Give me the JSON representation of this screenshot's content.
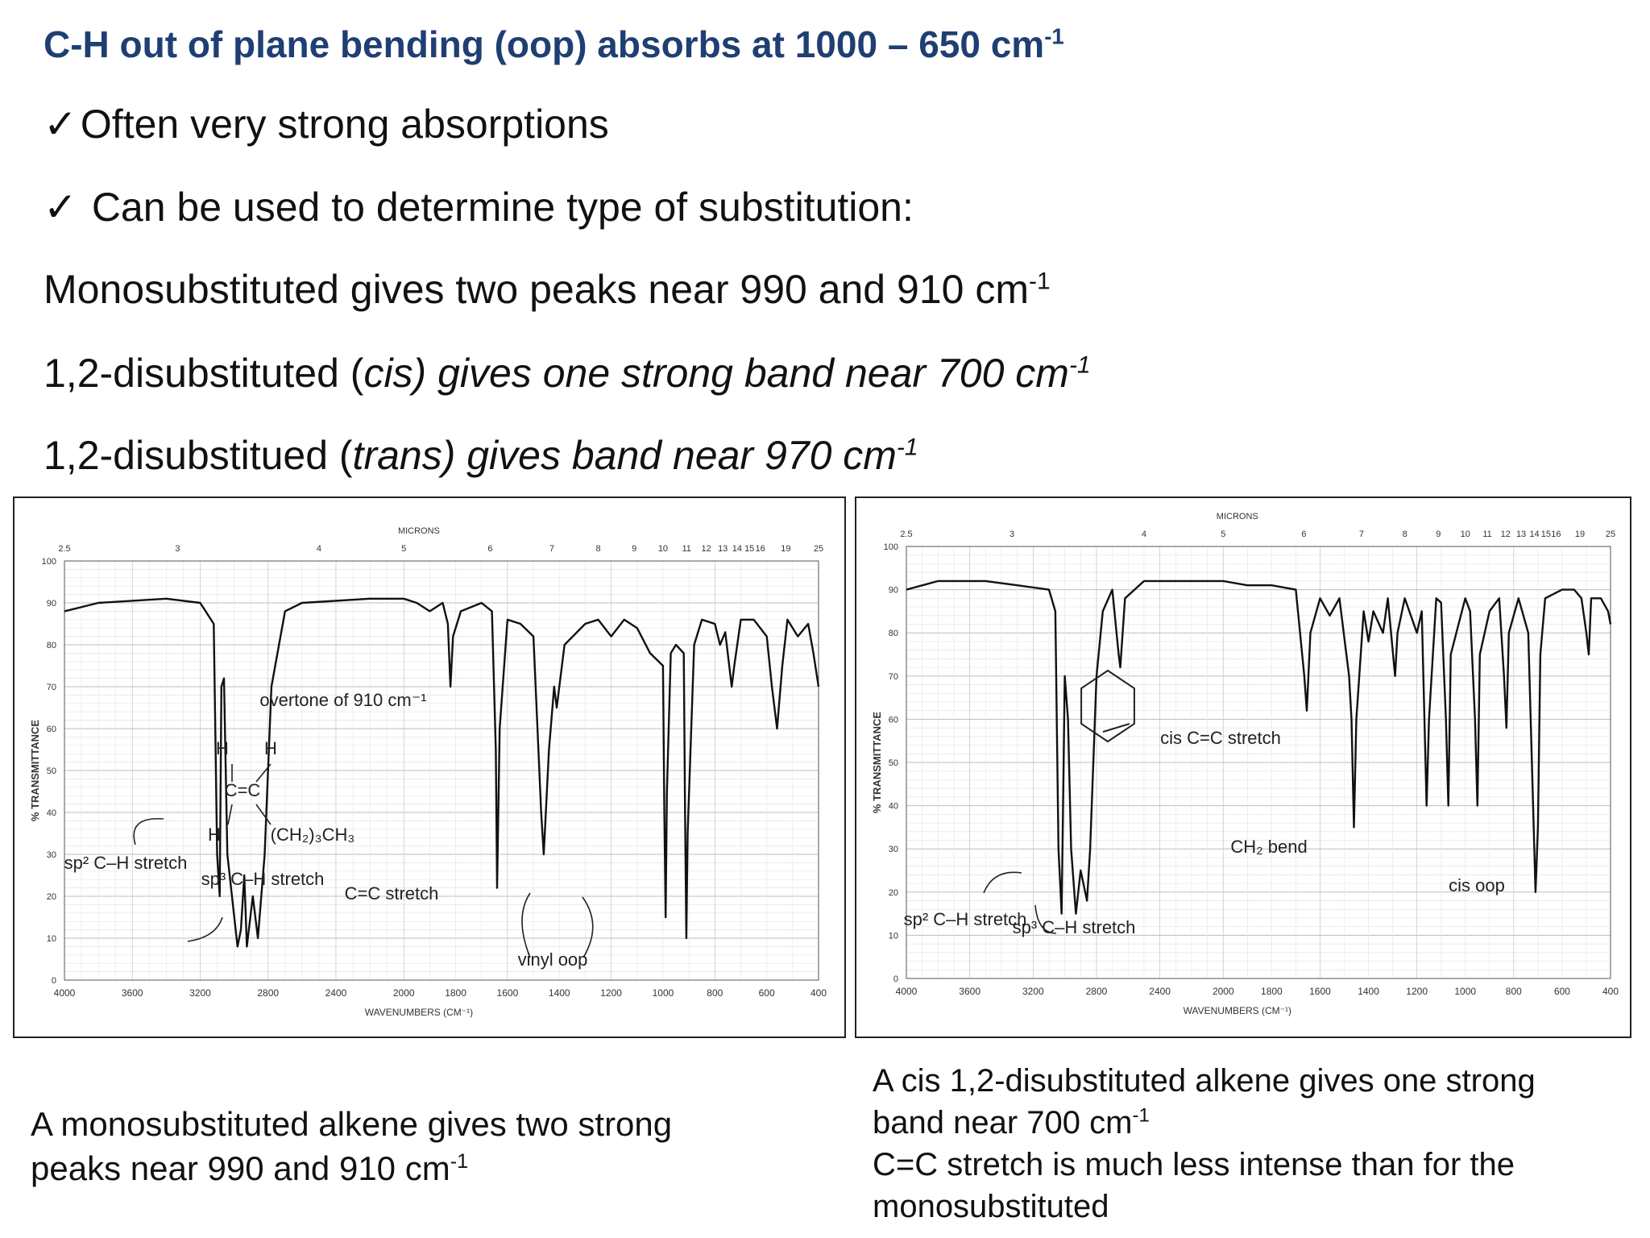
{
  "slide": {
    "title": "C-H out of plane bending (oop) absorbs at 1000 – 650 cm",
    "title_sup": "-1",
    "check_mark": "✓",
    "bullet1": "Often very strong absorptions",
    "bullet2": "Can be used to determine type of substitution:",
    "mono_text": "Monosubstituted gives two peaks near 990 and 910 cm",
    "mono_sup": "-1",
    "cis_pre": "1,2-disubstituted (",
    "cis_ital": "cis) gives one strong band near 700 cm",
    "cis_sup": "-1",
    "trans_pre": "1,2-disubstitued (",
    "trans_ital": "trans) gives  band near 970 cm",
    "trans_sup": "-1",
    "caption_left_1": "A monosubstituted alkene gives two strong",
    "caption_left_2": "peaks near 990 and 910 cm",
    "caption_left_sup": "-1",
    "caption_right_1": "A cis 1,2-disubstituted alkene gives one strong",
    "caption_right_2": "band near 700 cm",
    "caption_right_sup": "-1",
    "caption_right_3": "C=C stretch is much less intense than for the",
    "caption_right_4": "monosubstituted",
    "text_color": "#111111",
    "title_color": "#1f3f73"
  },
  "chart_data": [
    {
      "type": "line",
      "title": "",
      "xlabel": "WAVENUMBERS (CM⁻¹)",
      "ylabel": "% TRANSMITTANCE",
      "top_axis_label": "MICRONS",
      "xlim": [
        4000,
        400
      ],
      "ylim": [
        0,
        100
      ],
      "x_ticks": [
        "4000",
        "3600",
        "3200",
        "2800",
        "2400",
        "2000",
        "1800",
        "1600",
        "1400",
        "1200",
        "1000",
        "800",
        "600",
        "400"
      ],
      "y_ticks": [
        "0",
        "10",
        "20",
        "30",
        "40",
        "50",
        "60",
        "70",
        "80",
        "90",
        "100"
      ],
      "micron_ticks": [
        "2.5",
        "3",
        "4",
        "5",
        "6",
        "7",
        "8",
        "9",
        "10",
        "11",
        "12",
        "13",
        "14",
        "15",
        "16",
        "19",
        "25"
      ],
      "series": [
        {
          "name": "",
          "points": [
            [
              4000,
              88
            ],
            [
              3800,
              90
            ],
            [
              3400,
              91
            ],
            [
              3200,
              90
            ],
            [
              3120,
              85
            ],
            [
              3100,
              30
            ],
            [
              3085,
              20
            ],
            [
              3075,
              70
            ],
            [
              3060,
              72
            ],
            [
              3040,
              30
            ],
            [
              2980,
              8
            ],
            [
              2960,
              12
            ],
            [
              2940,
              25
            ],
            [
              2925,
              8
            ],
            [
              2890,
              20
            ],
            [
              2860,
              10
            ],
            [
              2820,
              30
            ],
            [
              2780,
              70
            ],
            [
              2700,
              88
            ],
            [
              2600,
              90
            ],
            [
              2200,
              91
            ],
            [
              2000,
              91
            ],
            [
              1950,
              90
            ],
            [
              1900,
              88
            ],
            [
              1850,
              90
            ],
            [
              1830,
              85
            ],
            [
              1820,
              70
            ],
            [
              1810,
              82
            ],
            [
              1780,
              88
            ],
            [
              1700,
              90
            ],
            [
              1660,
              88
            ],
            [
              1645,
              55
            ],
            [
              1640,
              22
            ],
            [
              1630,
              60
            ],
            [
              1600,
              86
            ],
            [
              1550,
              85
            ],
            [
              1500,
              82
            ],
            [
              1470,
              40
            ],
            [
              1460,
              30
            ],
            [
              1440,
              55
            ],
            [
              1420,
              70
            ],
            [
              1410,
              65
            ],
            [
              1380,
              80
            ],
            [
              1300,
              85
            ],
            [
              1250,
              86
            ],
            [
              1200,
              82
            ],
            [
              1150,
              86
            ],
            [
              1100,
              84
            ],
            [
              1050,
              78
            ],
            [
              1000,
              75
            ],
            [
              995,
              40
            ],
            [
              990,
              15
            ],
            [
              985,
              45
            ],
            [
              970,
              78
            ],
            [
              950,
              80
            ],
            [
              920,
              78
            ],
            [
              915,
              40
            ],
            [
              910,
              10
            ],
            [
              905,
              35
            ],
            [
              880,
              80
            ],
            [
              850,
              86
            ],
            [
              800,
              85
            ],
            [
              780,
              80
            ],
            [
              760,
              83
            ],
            [
              735,
              70
            ],
            [
              725,
              75
            ],
            [
              700,
              86
            ],
            [
              650,
              86
            ],
            [
              600,
              82
            ],
            [
              580,
              70
            ],
            [
              560,
              60
            ],
            [
              540,
              75
            ],
            [
              520,
              86
            ],
            [
              480,
              82
            ],
            [
              440,
              85
            ],
            [
              420,
              78
            ],
            [
              400,
              70
            ]
          ]
        }
      ],
      "annotations": [
        "sp² C–H stretch",
        "sp³ C–H stretch",
        "C=C stretch",
        "overtone of 910 cm⁻¹",
        "vinyl oop",
        "H",
        "H",
        "H",
        "C=C",
        "(CH₂)₃CH₃"
      ]
    },
    {
      "type": "line",
      "title": "",
      "xlabel": "WAVENUMBERS (CM⁻¹)",
      "ylabel": "% TRANSMITTANCE",
      "top_axis_label": "MICRONS",
      "xlim": [
        4000,
        400
      ],
      "ylim": [
        0,
        100
      ],
      "x_ticks": [
        "4000",
        "3600",
        "3200",
        "2800",
        "2400",
        "2000",
        "1800",
        "1600",
        "1400",
        "1200",
        "1000",
        "800",
        "600",
        "400"
      ],
      "y_ticks": [
        "0",
        "10",
        "20",
        "30",
        "40",
        "50",
        "60",
        "70",
        "80",
        "90",
        "100"
      ],
      "micron_ticks": [
        "2.5",
        "3",
        "4",
        "5",
        "6",
        "7",
        "8",
        "9",
        "10",
        "11",
        "12",
        "13",
        "14",
        "15",
        "16",
        "19",
        "25"
      ],
      "series": [
        {
          "name": "",
          "points": [
            [
              4000,
              90
            ],
            [
              3800,
              92
            ],
            [
              3500,
              92
            ],
            [
              3300,
              91
            ],
            [
              3100,
              90
            ],
            [
              3060,
              85
            ],
            [
              3040,
              30
            ],
            [
              3020,
              15
            ],
            [
              3000,
              70
            ],
            [
              2980,
              60
            ],
            [
              2960,
              30
            ],
            [
              2930,
              15
            ],
            [
              2900,
              25
            ],
            [
              2860,
              18
            ],
            [
              2840,
              30
            ],
            [
              2800,
              70
            ],
            [
              2760,
              85
            ],
            [
              2700,
              90
            ],
            [
              2660,
              75
            ],
            [
              2650,
              72
            ],
            [
              2620,
              88
            ],
            [
              2500,
              92
            ],
            [
              2300,
              92
            ],
            [
              2000,
              92
            ],
            [
              1900,
              91
            ],
            [
              1800,
              91
            ],
            [
              1700,
              90
            ],
            [
              1665,
              70
            ],
            [
              1655,
              62
            ],
            [
              1640,
              80
            ],
            [
              1600,
              88
            ],
            [
              1560,
              84
            ],
            [
              1520,
              88
            ],
            [
              1480,
              70
            ],
            [
              1470,
              60
            ],
            [
              1460,
              35
            ],
            [
              1450,
              60
            ],
            [
              1420,
              85
            ],
            [
              1400,
              78
            ],
            [
              1380,
              85
            ],
            [
              1340,
              80
            ],
            [
              1320,
              88
            ],
            [
              1290,
              70
            ],
            [
              1280,
              80
            ],
            [
              1250,
              88
            ],
            [
              1200,
              80
            ],
            [
              1180,
              85
            ],
            [
              1160,
              40
            ],
            [
              1150,
              60
            ],
            [
              1120,
              88
            ],
            [
              1100,
              87
            ],
            [
              1080,
              60
            ],
            [
              1070,
              40
            ],
            [
              1060,
              75
            ],
            [
              1000,
              88
            ],
            [
              980,
              85
            ],
            [
              960,
              60
            ],
            [
              950,
              40
            ],
            [
              940,
              75
            ],
            [
              900,
              85
            ],
            [
              860,
              88
            ],
            [
              840,
              70
            ],
            [
              830,
              58
            ],
            [
              820,
              80
            ],
            [
              780,
              88
            ],
            [
              740,
              80
            ],
            [
              720,
              40
            ],
            [
              710,
              20
            ],
            [
              700,
              35
            ],
            [
              690,
              75
            ],
            [
              670,
              88
            ],
            [
              600,
              90
            ],
            [
              550,
              90
            ],
            [
              520,
              88
            ],
            [
              500,
              80
            ],
            [
              490,
              75
            ],
            [
              480,
              88
            ],
            [
              440,
              88
            ],
            [
              410,
              85
            ],
            [
              400,
              82
            ]
          ]
        }
      ],
      "annotations": [
        "sp² C–H stretch",
        "sp³ C–H stretch",
        "cis C=C stretch",
        "CH₂ bend",
        "cis oop"
      ]
    }
  ]
}
